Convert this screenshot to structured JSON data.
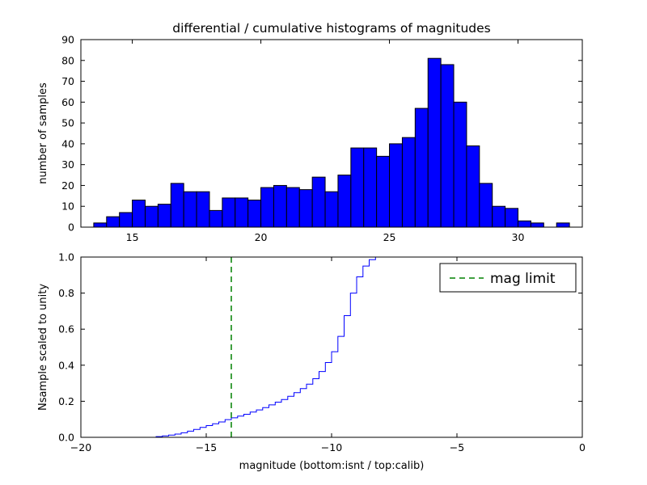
{
  "figure": {
    "title": "differential / cumulative histograms of magnitudes",
    "colors": {
      "bar_fill": "#0000ff",
      "bar_edge": "#000000",
      "step_line": "#0000ff",
      "mag_limit_line": "#008000",
      "axis": "#000000",
      "text": "#000000",
      "background": "#ffffff"
    }
  },
  "chart_data": [
    {
      "type": "bar",
      "role": "differential-histogram",
      "ylabel": "number of samples",
      "xlim": [
        13,
        32.5
      ],
      "ylim": [
        0,
        90
      ],
      "grid": false,
      "bin_start": 13.5,
      "bin_width": 0.5,
      "counts": [
        2,
        5,
        7,
        13,
        10,
        11,
        21,
        17,
        17,
        8,
        14,
        14,
        13,
        19,
        20,
        19,
        18,
        24,
        17,
        25,
        38,
        38,
        34,
        40,
        43,
        57,
        81,
        78,
        60,
        39,
        21,
        10,
        9,
        3,
        2,
        0,
        2
      ],
      "xticks": [
        {
          "v": 15,
          "label": "15"
        },
        {
          "v": 20,
          "label": "20"
        },
        {
          "v": 25,
          "label": "25"
        },
        {
          "v": 30,
          "label": "30"
        }
      ],
      "yticks": [
        {
          "v": 0,
          "label": "0"
        },
        {
          "v": 10,
          "label": "10"
        },
        {
          "v": 20,
          "label": "20"
        },
        {
          "v": 30,
          "label": "30"
        },
        {
          "v": 40,
          "label": "40"
        },
        {
          "v": 50,
          "label": "50"
        },
        {
          "v": 60,
          "label": "60"
        },
        {
          "v": 70,
          "label": "70"
        },
        {
          "v": 80,
          "label": "80"
        },
        {
          "v": 90,
          "label": "90"
        }
      ]
    },
    {
      "type": "line",
      "role": "cumulative-histogram",
      "ylabel": "Nsample scaled to unity",
      "xlabel": "magnitude (bottom:isnt / top:calib)",
      "xlim": [
        -20,
        0
      ],
      "ylim": [
        0,
        1.0
      ],
      "grid": false,
      "step_bin_start": -17.0,
      "step_bin_width": 0.25,
      "cumulative": [
        0.004,
        0.008,
        0.012,
        0.018,
        0.025,
        0.034,
        0.044,
        0.055,
        0.065,
        0.075,
        0.085,
        0.098,
        0.108,
        0.118,
        0.128,
        0.14,
        0.152,
        0.165,
        0.18,
        0.195,
        0.21,
        0.228,
        0.248,
        0.27,
        0.295,
        0.325,
        0.365,
        0.415,
        0.475,
        0.56,
        0.675,
        0.8,
        0.89,
        0.95,
        0.985,
        1.0
      ],
      "mag_limit": -14,
      "legend": {
        "label": "mag limit",
        "position": "upper right"
      },
      "xticks": [
        {
          "v": -20,
          "label": "−20"
        },
        {
          "v": -15,
          "label": "−15"
        },
        {
          "v": -10,
          "label": "−10"
        },
        {
          "v": -5,
          "label": "−5"
        },
        {
          "v": 0,
          "label": "0"
        }
      ],
      "yticks": [
        {
          "v": 0,
          "label": "0.0"
        },
        {
          "v": 0.2,
          "label": "0.2"
        },
        {
          "v": 0.4,
          "label": "0.4"
        },
        {
          "v": 0.6,
          "label": "0.6"
        },
        {
          "v": 0.8,
          "label": "0.8"
        },
        {
          "v": 1.0,
          "label": "1.0"
        }
      ]
    }
  ]
}
